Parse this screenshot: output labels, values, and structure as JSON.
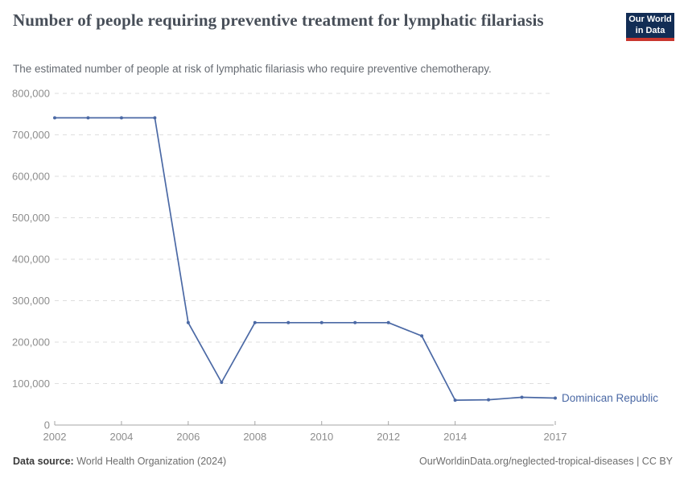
{
  "header": {
    "title": "Number of people requiring preventive treatment for lymphatic filariasis",
    "subtitle": "The estimated number of people at risk of lymphatic filariasis who require preventive chemotherapy.",
    "logo": {
      "line1": "Our World",
      "line2": "in Data",
      "bg_color": "#122D55",
      "bar_color": "#C9362E"
    }
  },
  "chart_data": {
    "type": "line",
    "title": "Number of people requiring preventive treatment for lymphatic filariasis",
    "xlabel": "",
    "ylabel": "",
    "x": [
      2002,
      2003,
      2004,
      2005,
      2006,
      2007,
      2008,
      2009,
      2010,
      2011,
      2012,
      2013,
      2014,
      2015,
      2016,
      2017
    ],
    "series": [
      {
        "name": "Dominican Republic",
        "color": "#4B69A5",
        "values": [
          741000,
          741000,
          741000,
          741000,
          247000,
          103000,
          247000,
          247000,
          247000,
          247000,
          247000,
          215000,
          60000,
          61000,
          67000,
          65000
        ]
      }
    ],
    "xlim": [
      2002,
      2017
    ],
    "ylim": [
      0,
      800000
    ],
    "x_ticks": [
      2002,
      2004,
      2006,
      2008,
      2010,
      2012,
      2014,
      2017
    ],
    "y_ticks": [
      0,
      100000,
      200000,
      300000,
      400000,
      500000,
      600000,
      700000,
      800000
    ],
    "grid": "horizontal-dashed",
    "legend_position": "end-of-line-label",
    "colors": {
      "gridline": "#dedede",
      "axis": "#a5a5a5",
      "tick_label": "#8d8d8d"
    }
  },
  "footer": {
    "source_label": "Data source:",
    "source_text": " World Health Organization (2024)",
    "credit": "OurWorldinData.org/neglected-tropical-diseases | CC BY"
  }
}
